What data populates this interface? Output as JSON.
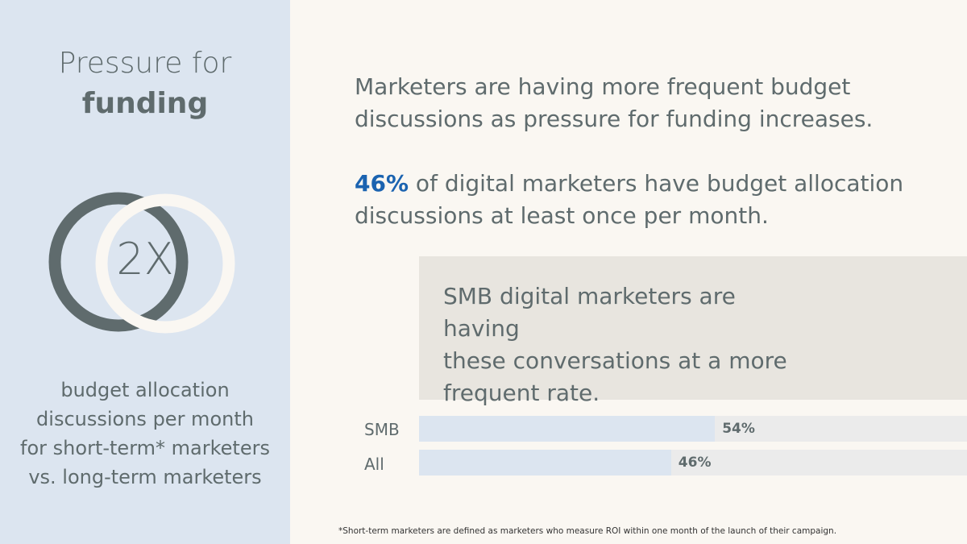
{
  "title": {
    "line1": "Pressure for",
    "line2": "funding"
  },
  "multiplier": "2X",
  "left_caption": [
    "budget allocation",
    "discussions per month",
    "for short-term* marketers",
    "vs. long-term marketers"
  ],
  "intro": {
    "line1": "Marketers are having more frequent budget",
    "line2": "discussions as pressure for funding increases."
  },
  "stat": {
    "highlight": "46%",
    "rest_line1": " of digital marketers have budget allocation",
    "line2": "discussions at least once per month."
  },
  "callout": {
    "line1": "SMB digital marketers are having",
    "line2": "these conversations at a more",
    "line3": "frequent rate."
  },
  "footnote": "*Short-term marketers are defined as marketers who measure ROI within one month of the launch of their campaign.",
  "colors": {
    "left_panel": "#dce5f0",
    "background": "#faf7f2",
    "accent": "#1b63b0",
    "ring_dark": "#5f6b6d",
    "ring_light": "#faf7f2",
    "bar_fill": "#dce5f0",
    "bar_track": "#ebebeb"
  },
  "chart_data": {
    "type": "bar",
    "orientation": "horizontal",
    "categories": [
      "SMB",
      "All"
    ],
    "values": [
      54,
      46
    ],
    "value_labels": [
      "54%",
      "46%"
    ],
    "xlim": [
      0,
      100
    ]
  }
}
